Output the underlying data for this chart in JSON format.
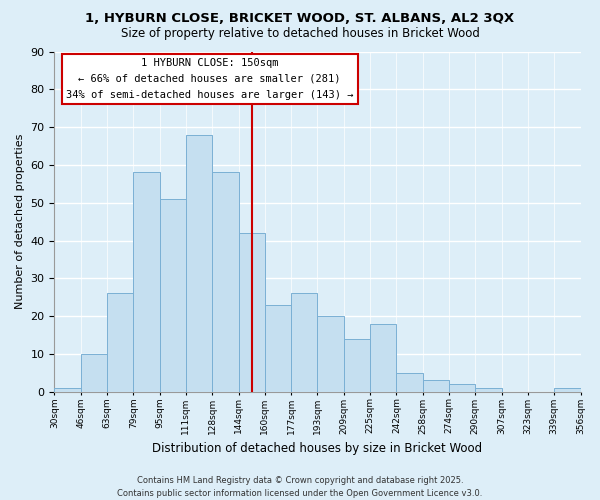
{
  "title": "1, HYBURN CLOSE, BRICKET WOOD, ST. ALBANS, AL2 3QX",
  "subtitle": "Size of property relative to detached houses in Bricket Wood",
  "xlabel": "Distribution of detached houses by size in Bricket Wood",
  "ylabel": "Number of detached properties",
  "bin_labels": [
    "30sqm",
    "46sqm",
    "63sqm",
    "79sqm",
    "95sqm",
    "111sqm",
    "128sqm",
    "144sqm",
    "160sqm",
    "177sqm",
    "193sqm",
    "209sqm",
    "225sqm",
    "242sqm",
    "258sqm",
    "274sqm",
    "290sqm",
    "307sqm",
    "323sqm",
    "339sqm",
    "356sqm"
  ],
  "bar_heights": [
    1,
    10,
    26,
    58,
    51,
    68,
    58,
    42,
    23,
    26,
    20,
    14,
    18,
    5,
    3,
    2,
    1,
    0,
    0,
    1
  ],
  "bar_color": "#c5dff0",
  "bar_edge_color": "#7ab0d4",
  "vline_color": "#cc0000",
  "ylim": [
    0,
    90
  ],
  "yticks": [
    0,
    10,
    20,
    30,
    40,
    50,
    60,
    70,
    80,
    90
  ],
  "annotation_title": "1 HYBURN CLOSE: 150sqm",
  "annotation_line1": "← 66% of detached houses are smaller (281)",
  "annotation_line2": "34% of semi-detached houses are larger (143) →",
  "annotation_box_color": "#ffffff",
  "annotation_box_edge": "#cc0000",
  "footer_line1": "Contains HM Land Registry data © Crown copyright and database right 2025.",
  "footer_line2": "Contains public sector information licensed under the Open Government Licence v3.0.",
  "background_color": "#ddeef8",
  "plot_background": "#ddeef8",
  "grid_color": "#ffffff",
  "title_fontsize": 9.5,
  "subtitle_fontsize": 8.5
}
